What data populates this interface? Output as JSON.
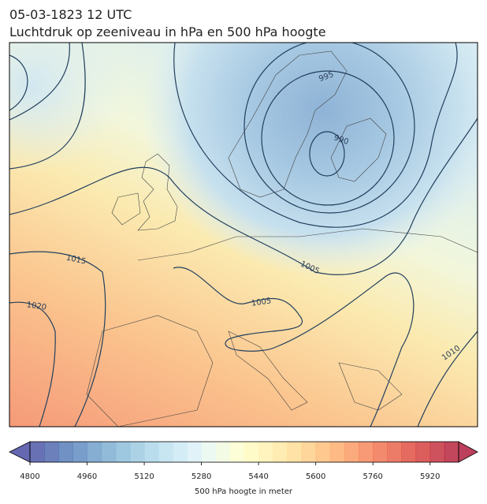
{
  "header": {
    "title": "05-03-1823 12 UTC",
    "subtitle": "Luchtdruk op zeeniveau in hPa en 500 hPa hoogte"
  },
  "map": {
    "contour_labels": [
      "995",
      "990",
      "1005",
      "1005",
      "1015",
      "1020",
      "1010"
    ]
  },
  "colorbar": {
    "label": "500 hPa hoogte in meter",
    "range": [
      4800,
      6000
    ],
    "step": 40,
    "ticks": [
      4800,
      4960,
      5120,
      5280,
      5440,
      5600,
      5760,
      5920
    ]
  }
}
